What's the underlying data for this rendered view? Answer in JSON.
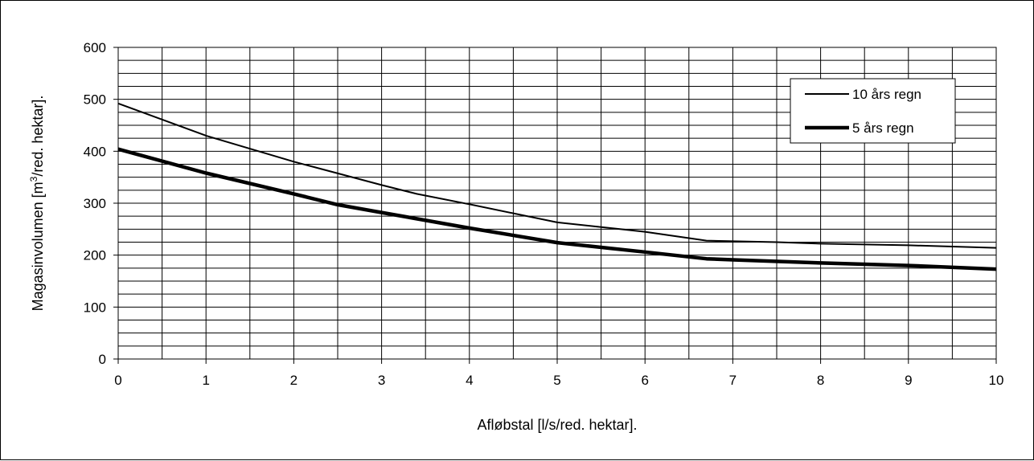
{
  "chart_data": {
    "type": "line",
    "title": "",
    "xlabel": "Afløbstal [l/s/red. hektar].",
    "ylabel": {
      "prefix": "Magasinvolumen [m",
      "superscript": "3",
      "suffix": "/red. hektar]."
    },
    "xlim": [
      0,
      10
    ],
    "ylim": [
      0,
      600
    ],
    "x_ticks": [
      "0",
      "1",
      "2",
      "3",
      "4",
      "5",
      "6",
      "7",
      "8",
      "9",
      "10"
    ],
    "y_ticks": [
      "0",
      "100",
      "200",
      "300",
      "400",
      "500",
      "600"
    ],
    "x_minor_step": 0.5,
    "y_minor_step": 25,
    "grid": true,
    "legend_position": "top-right",
    "series": [
      {
        "name": "10 års regn",
        "line": "thin",
        "color": "#000000",
        "x": [
          0,
          1,
          2,
          3,
          3.4,
          4,
          5,
          6,
          6.7,
          7.5,
          8,
          9,
          10
        ],
        "y": [
          492,
          430,
          380,
          335,
          318,
          298,
          263,
          245,
          228,
          225,
          222,
          219,
          214
        ]
      },
      {
        "name": "5 års regn",
        "line": "thick",
        "color": "#000000",
        "x": [
          0,
          1,
          2,
          2.5,
          3,
          4,
          5,
          6,
          6.7,
          7,
          8,
          9,
          10
        ],
        "y": [
          404,
          358,
          318,
          297,
          282,
          252,
          224,
          206,
          193,
          191,
          185,
          180,
          173
        ]
      }
    ]
  }
}
